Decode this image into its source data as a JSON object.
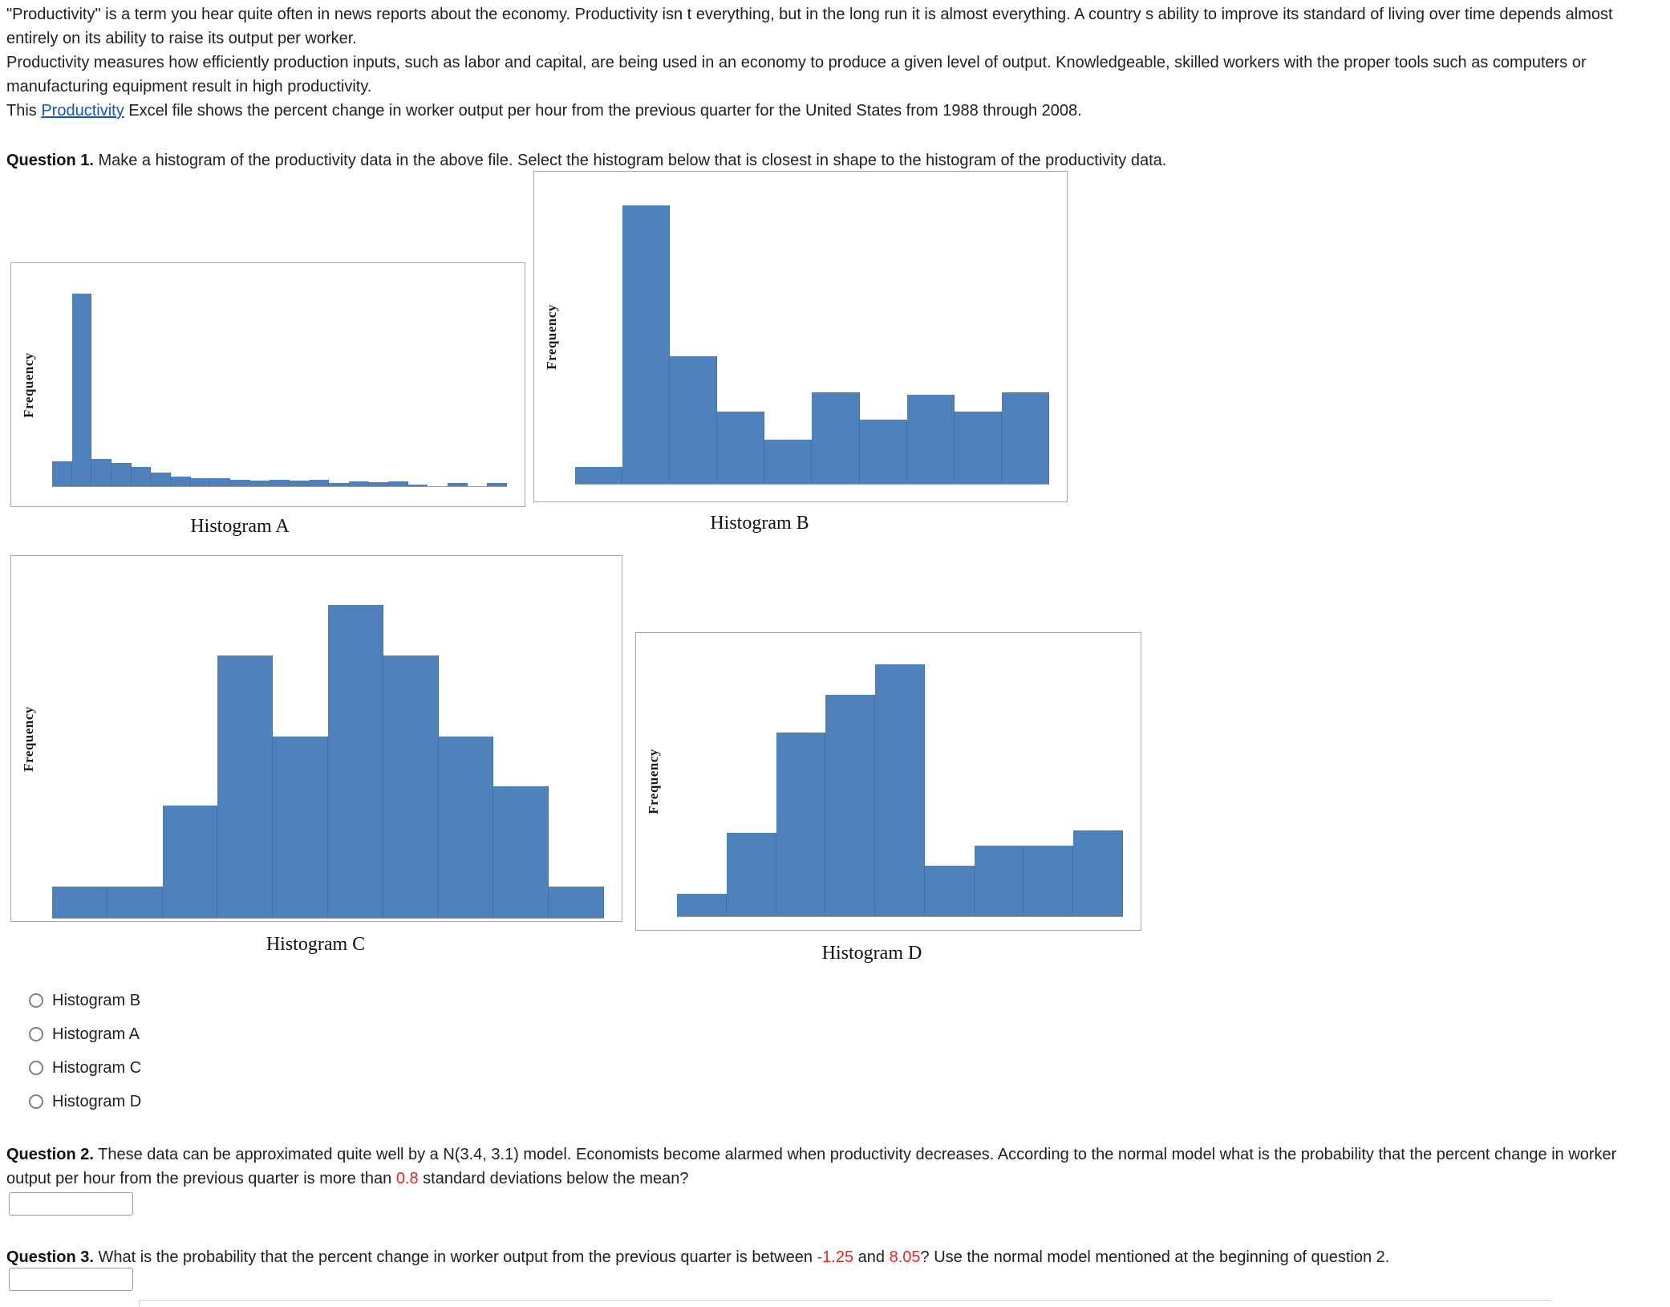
{
  "page": {
    "intro": {
      "p1": "\"Productivity\" is a term you hear quite often in news reports about the economy. Productivity isn t everything, but in the long run it is almost everything. A country s ability to improve its standard of living over time depends almost entirely on its ability to raise its output per worker.",
      "p2": "Productivity measures how efficiently production inputs, such as labor and capital, are being used in an economy to produce a given level of output. Knowledgeable, skilled workers with the proper tools such as computers or manufacturing equipment result in high productivity.",
      "p3_before": "This ",
      "p3_link": "Productivity",
      "p3_after": " Excel file shows the percent change in worker output per hour from the previous quarter for the United States from 1988 through 2008."
    },
    "question1": {
      "label": "Question 1.",
      "text": " Make a histogram of the productivity data in the above file. Select the histogram below that is closest in shape to the histogram of the productivity data.",
      "options": [
        "Histogram B",
        "Histogram A",
        "Histogram C",
        "Histogram D"
      ]
    },
    "question2": {
      "label": "Question 2.",
      "text_before": " These data can be approximated quite well by a N(3.4, 3.1) model. Economists become alarmed when productivity decreases. According to the normal model what is the probability that the percent change in worker output per hour from the previous quarter is more than ",
      "highlight": "0.8",
      "text_after": " standard deviations below the mean?",
      "answer_value": ""
    },
    "question3": {
      "label": "Question 3.",
      "text_before": " What is the probability that the percent change in worker output from the previous quarter is between ",
      "highlight1": "-1.25",
      "text_middle": " and ",
      "highlight2": "8.05",
      "text_after": "? Use the normal model mentioned at the beginning of question 2.",
      "answer_value": ""
    }
  },
  "chart_data": [
    {
      "type": "bar",
      "subtype": "histogram",
      "title": "Histogram A",
      "ylabel": "Frequency",
      "xlabel": "",
      "axis_tick_labels_visible": false,
      "shape": "strongly right-skewed with a sharp spike near the minimum and a long thin tail",
      "values": [
        13,
        100,
        14,
        12,
        10,
        7,
        5,
        4,
        4,
        3.5,
        3,
        3.5,
        3,
        3.5,
        1.5,
        2.5,
        2,
        2.5,
        1,
        0,
        1.5,
        0,
        1.5
      ],
      "layout": {
        "grid": false,
        "legend": false,
        "peak_fraction": 0.89
      }
    },
    {
      "type": "bar",
      "subtype": "histogram",
      "title": "Histogram B",
      "ylabel": "Frequency",
      "xlabel": "",
      "axis_tick_labels_visible": false,
      "shape": "tall spike near left followed by irregular mid-height bars",
      "values": [
        6,
        100,
        46,
        26,
        16,
        33,
        23,
        32,
        26,
        33
      ],
      "layout": {
        "grid": false,
        "legend": false,
        "peak_fraction": 0.91
      }
    },
    {
      "type": "bar",
      "subtype": "histogram",
      "title": "Histogram C",
      "ylabel": "Frequency",
      "xlabel": "",
      "axis_tick_labels_visible": false,
      "shape": "roughly symmetric mound with central peak",
      "values": [
        10,
        10,
        36,
        84,
        58,
        100,
        84,
        58,
        42,
        10
      ],
      "layout": {
        "grid": false,
        "legend": false,
        "peak_fraction": 0.88
      }
    },
    {
      "type": "bar",
      "subtype": "histogram",
      "title": "Histogram D",
      "ylabel": "Frequency",
      "xlabel": "",
      "axis_tick_labels_visible": false,
      "shape": "left mound rising to a peak then dropping to low bars with slight rise at right",
      "values": [
        9,
        33,
        73,
        88,
        100,
        20,
        28,
        28,
        34
      ],
      "layout": {
        "grid": false,
        "legend": false,
        "peak_fraction": 0.91
      }
    }
  ],
  "colors": {
    "bar_fill": "#4f81bd",
    "chart_border": "#a6a6a6",
    "question_highlight": "#e8261f",
    "link": "#1155cc",
    "text": "#202020"
  }
}
